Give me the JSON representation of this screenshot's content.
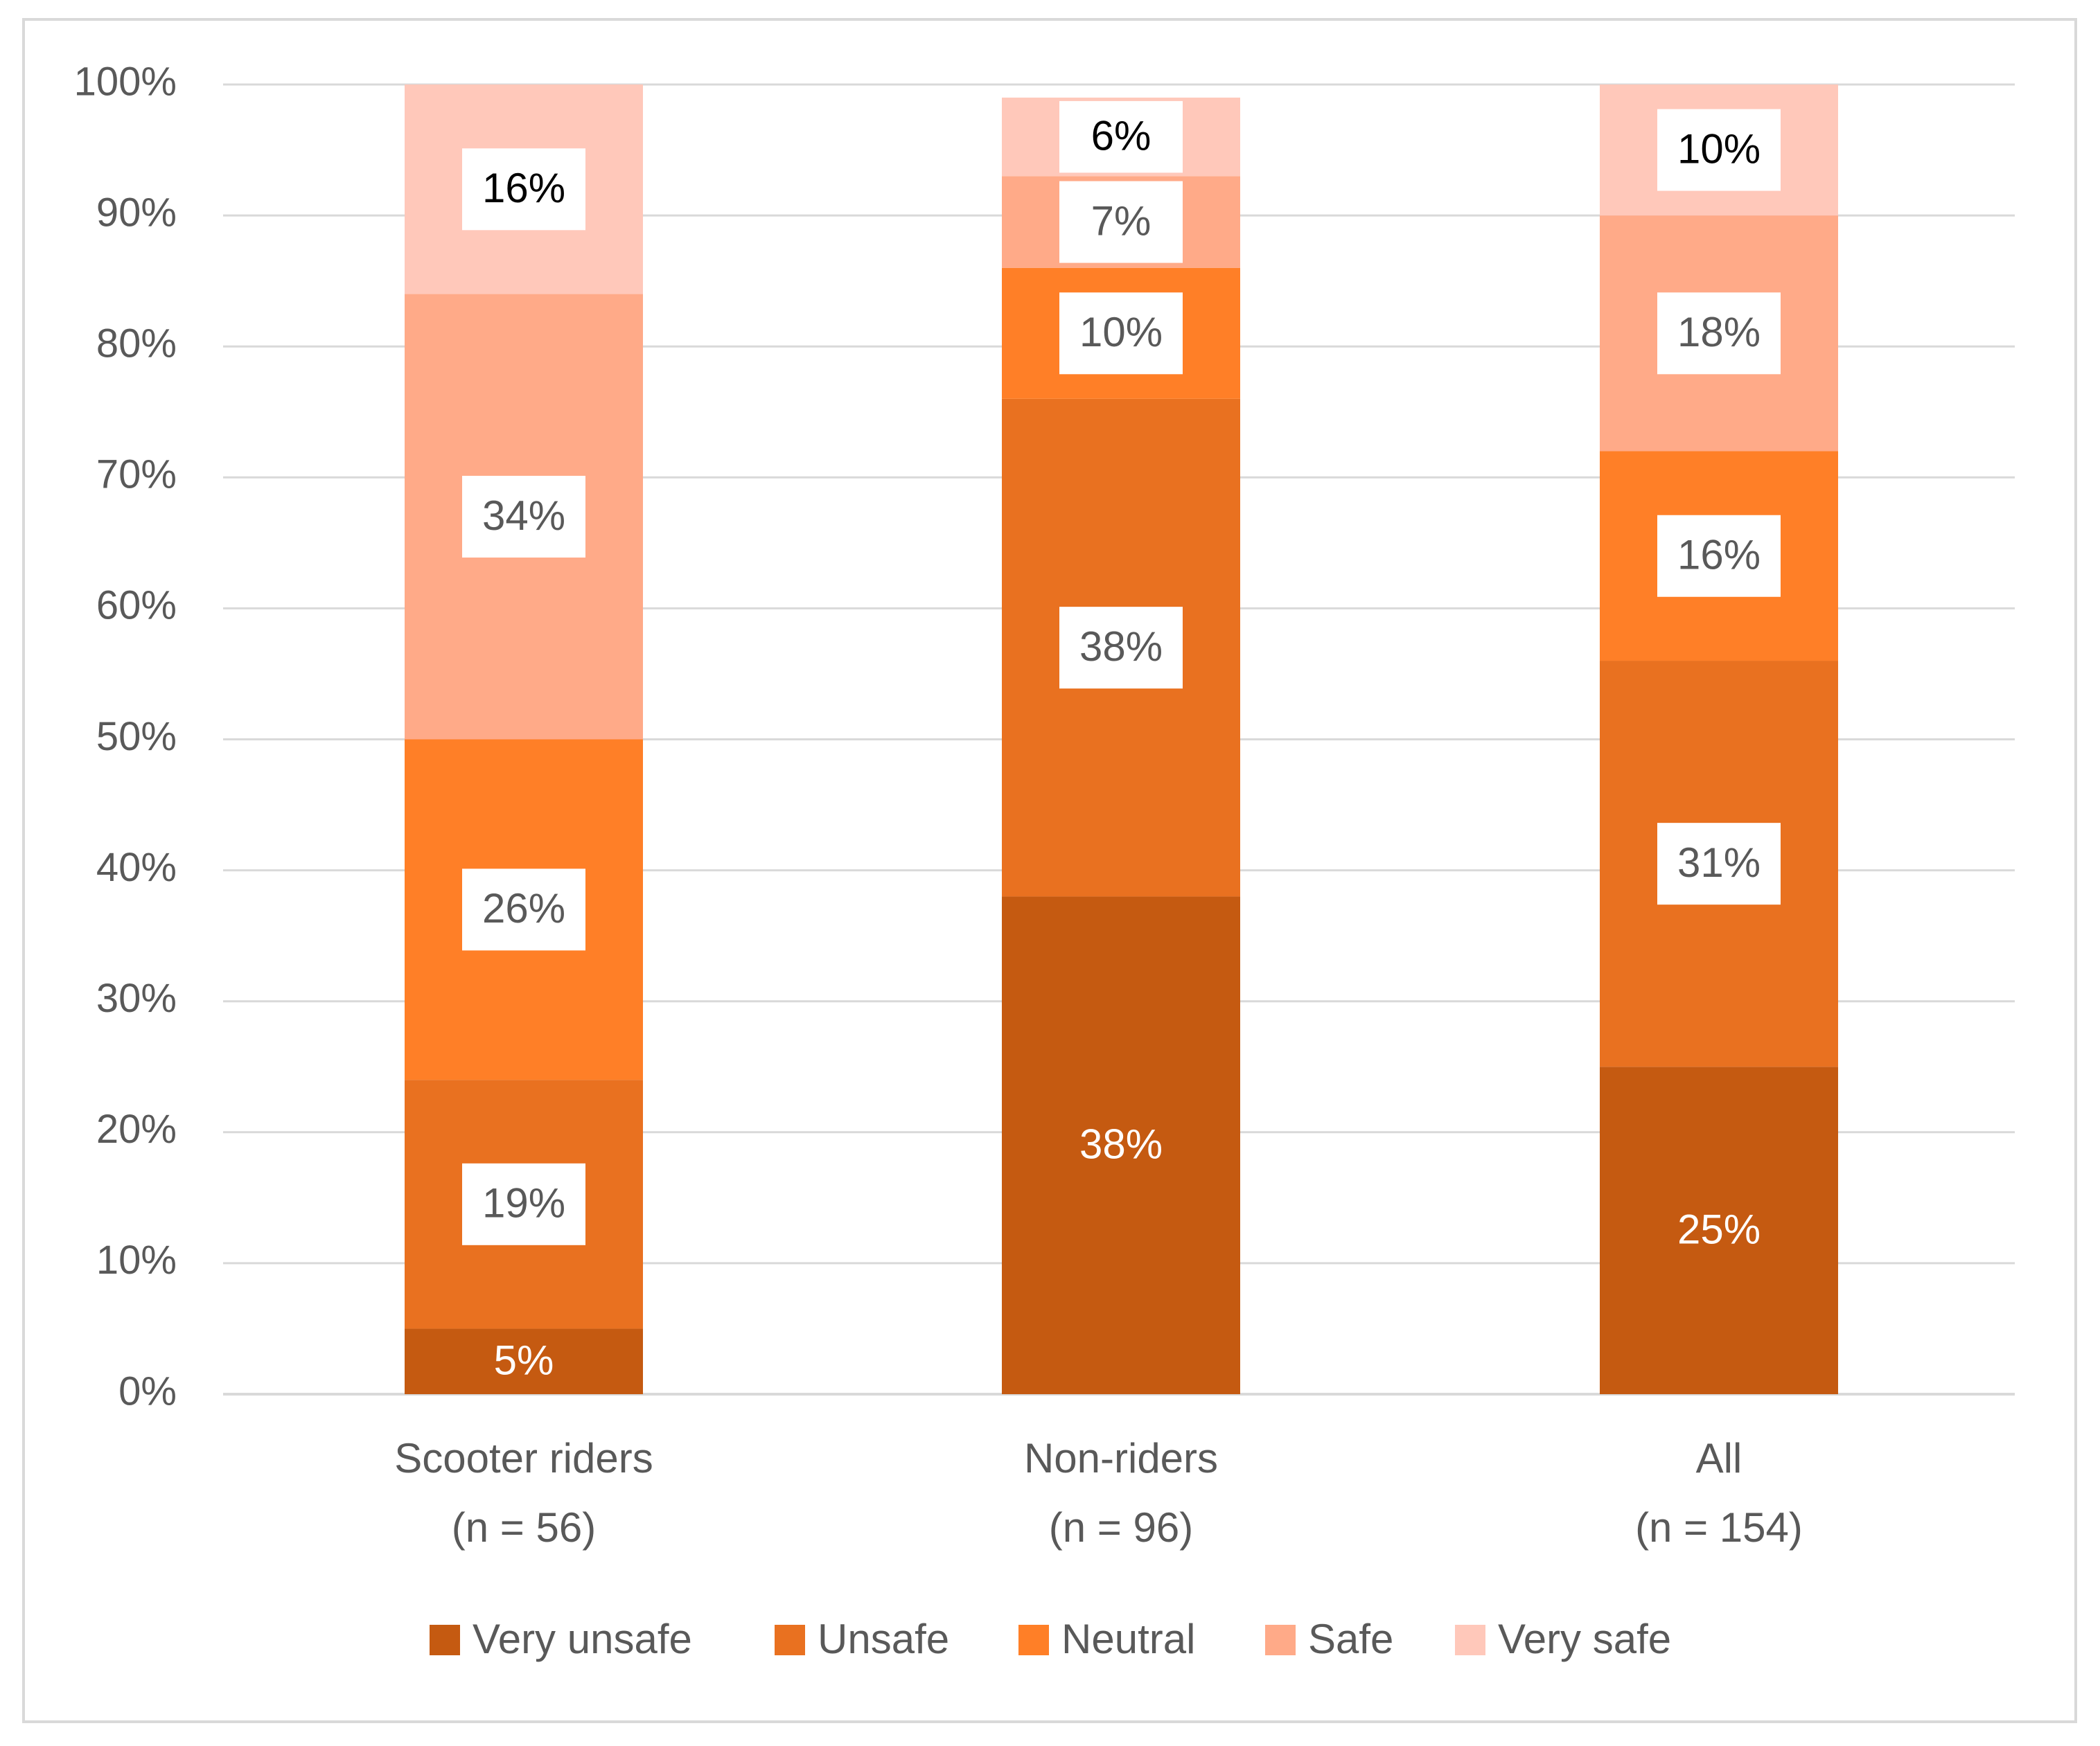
{
  "chart_data": {
    "type": "bar",
    "stacked": true,
    "categories": [
      "Scooter riders\n(n = 56)",
      "Non-riders\n(n = 96)",
      "All\n(n = 154)"
    ],
    "series": [
      {
        "name": "Very unsafe",
        "color": "#C55A11",
        "values": [
          5,
          38,
          25
        ]
      },
      {
        "name": "Unsafe",
        "color": "#E97120",
        "values": [
          19,
          38,
          31
        ]
      },
      {
        "name": "Neutral",
        "color": "#FF7F27",
        "values": [
          26,
          10,
          16
        ]
      },
      {
        "name": "Safe",
        "color": "#FFAA88",
        "values": [
          34,
          7,
          18
        ]
      },
      {
        "name": "Very safe",
        "color": "#FFC8BA",
        "values": [
          16,
          6,
          10
        ]
      }
    ],
    "data_labels": [
      [
        "5%",
        "38%",
        "25%"
      ],
      [
        "19%",
        "38%",
        "31%"
      ],
      [
        "26%",
        "10%",
        "16%"
      ],
      [
        "34%",
        "7%",
        "18%"
      ],
      [
        "16%",
        "6%",
        "10%"
      ]
    ],
    "y_ticks": [
      "0%",
      "10%",
      "20%",
      "30%",
      "40%",
      "50%",
      "60%",
      "70%",
      "80%",
      "90%",
      "100%"
    ],
    "ylim": [
      0,
      100
    ],
    "grid": true,
    "legend_position": "bottom",
    "title": "",
    "xlabel": "",
    "ylabel": ""
  }
}
